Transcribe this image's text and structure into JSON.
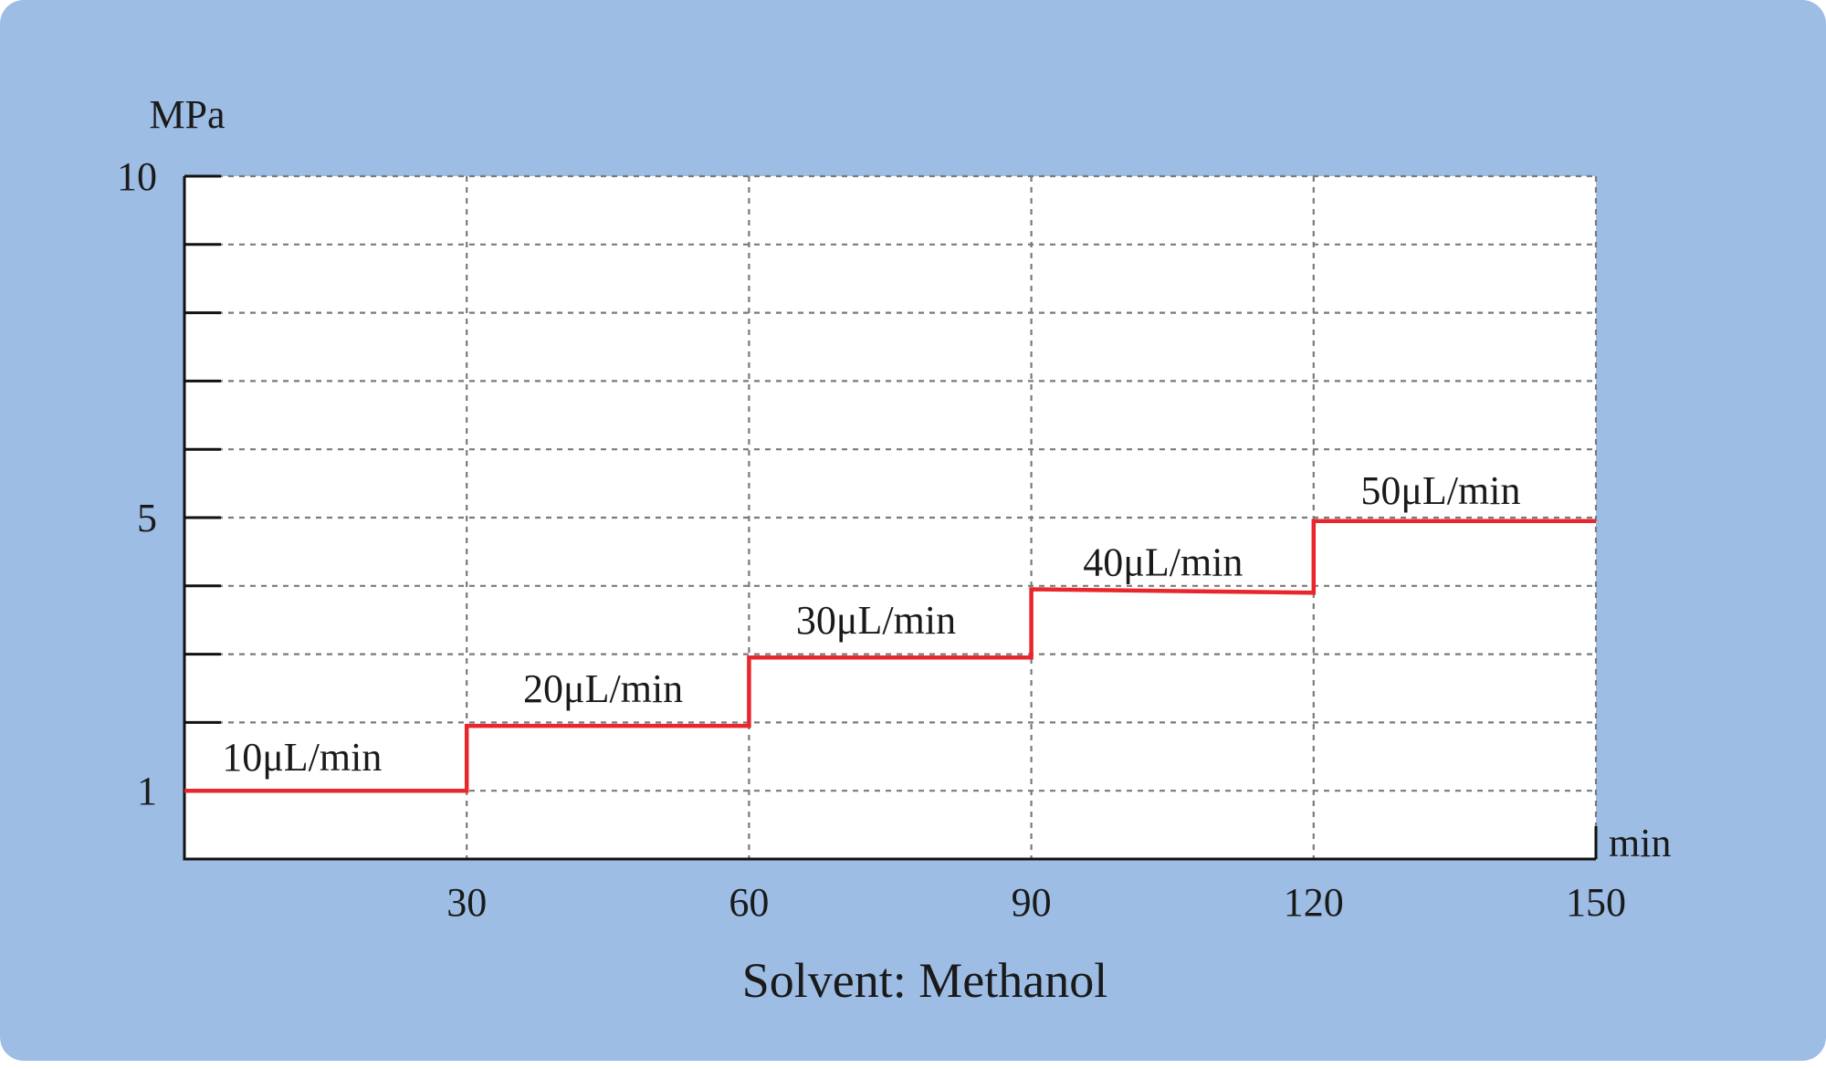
{
  "chart_data": {
    "type": "line",
    "title": "",
    "caption": "Solvent: Methanol",
    "xlabel": "min",
    "ylabel": "MPa",
    "xlim": [
      0,
      150
    ],
    "ylim": [
      0,
      10
    ],
    "x_ticks": [
      30,
      60,
      90,
      120,
      150
    ],
    "x_tick_labels": [
      "30",
      "60",
      "90",
      "120",
      "150"
    ],
    "y_ticks": [
      1,
      5,
      10
    ],
    "y_tick_labels": [
      "1",
      "5",
      "10"
    ],
    "y_grid_step": 1,
    "grid": true,
    "series": [
      {
        "color": "#e8262b",
        "points": [
          [
            0,
            1.0
          ],
          [
            30,
            1.0
          ],
          [
            30,
            1.95
          ],
          [
            60,
            1.95
          ],
          [
            60,
            2.95
          ],
          [
            90,
            2.95
          ],
          [
            90,
            3.95
          ],
          [
            120,
            3.9
          ],
          [
            120,
            4.95
          ],
          [
            150,
            4.95
          ]
        ]
      }
    ],
    "annotations": [
      {
        "text": "10μL/min",
        "x": 4,
        "y": 1.3
      },
      {
        "text": "20μL/min",
        "x": 36,
        "y": 2.3
      },
      {
        "text": "30μL/min",
        "x": 65,
        "y": 3.3
      },
      {
        "text": "40μL/min",
        "x": 95.5,
        "y": 4.15
      },
      {
        "text": "50μL/min",
        "x": 125,
        "y": 5.2
      }
    ]
  }
}
